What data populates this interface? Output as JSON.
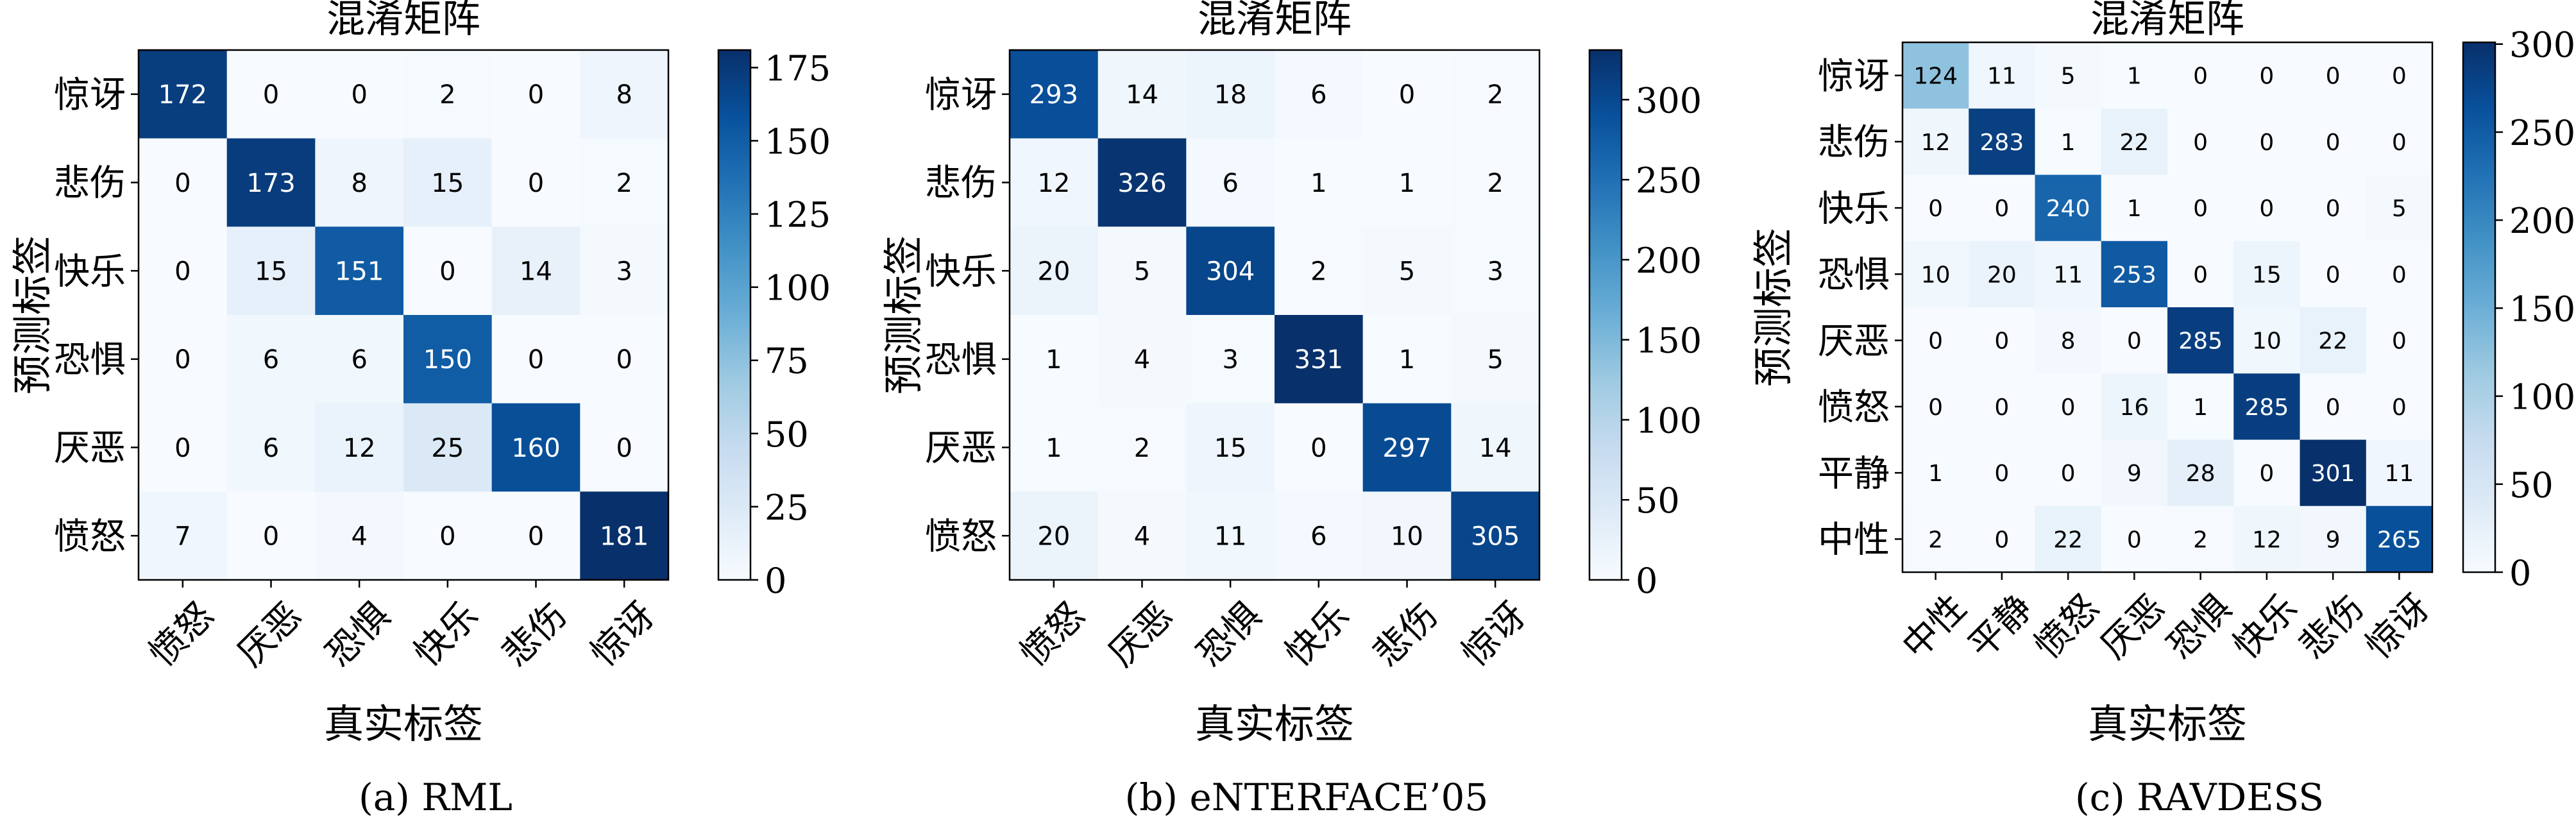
{
  "chart_data": [
    {
      "type": "heatmap",
      "title": "混淆矩阵",
      "xlabel": "真实标签",
      "ylabel": "预测标签",
      "caption": "(a) RML",
      "x_categories": [
        "愤怒",
        "厌恶",
        "恐惧",
        "快乐",
        "悲伤",
        "惊讶"
      ],
      "y_categories": [
        "惊讶",
        "悲伤",
        "快乐",
        "恐惧",
        "厌恶",
        "愤怒"
      ],
      "values": [
        [
          172,
          0,
          0,
          2,
          0,
          8
        ],
        [
          0,
          173,
          8,
          15,
          0,
          2
        ],
        [
          0,
          15,
          151,
          0,
          14,
          3
        ],
        [
          0,
          6,
          6,
          150,
          0,
          0
        ],
        [
          0,
          6,
          12,
          25,
          160,
          0
        ],
        [
          7,
          0,
          4,
          0,
          0,
          181
        ]
      ],
      "colorbar_range": [
        0,
        181
      ],
      "colorbar_ticks": [
        "0",
        "25",
        "50",
        "75",
        "100",
        "125",
        "150",
        "175"
      ],
      "colormap": [
        "#f7fbff",
        "#deebf7",
        "#c6dbef",
        "#9ecae1",
        "#6baed6",
        "#4292c6",
        "#2171b5",
        "#08519c",
        "#08306b"
      ]
    },
    {
      "type": "heatmap",
      "title": "混淆矩阵",
      "xlabel": "真实标签",
      "ylabel": "预测标签",
      "caption": "(b) eNTERFACE’05",
      "x_categories": [
        "愤怒",
        "厌恶",
        "恐惧",
        "快乐",
        "悲伤",
        "惊讶"
      ],
      "y_categories": [
        "惊讶",
        "悲伤",
        "快乐",
        "恐惧",
        "厌恶",
        "愤怒"
      ],
      "values": [
        [
          293,
          14,
          18,
          6,
          0,
          2
        ],
        [
          12,
          326,
          6,
          1,
          1,
          2
        ],
        [
          20,
          5,
          304,
          2,
          5,
          3
        ],
        [
          1,
          4,
          3,
          331,
          1,
          5
        ],
        [
          1,
          2,
          15,
          0,
          297,
          14
        ],
        [
          20,
          4,
          11,
          6,
          10,
          305
        ]
      ],
      "colorbar_range": [
        0,
        331
      ],
      "colorbar_ticks": [
        "0",
        "50",
        "100",
        "150",
        "200",
        "250",
        "300"
      ],
      "colormap": [
        "#f7fbff",
        "#deebf7",
        "#c6dbef",
        "#9ecae1",
        "#6baed6",
        "#4292c6",
        "#2171b5",
        "#08519c",
        "#08306b"
      ]
    },
    {
      "type": "heatmap",
      "title": "混淆矩阵",
      "xlabel": "真实标签",
      "ylabel": "预测标签",
      "caption": "(c) RAVDESS",
      "x_categories": [
        "中性",
        "平静",
        "愤怒",
        "厌恶",
        "恐惧",
        "快乐",
        "悲伤",
        "惊讶"
      ],
      "y_categories": [
        "惊讶",
        "悲伤",
        "快乐",
        "恐惧",
        "厌恶",
        "愤怒",
        "平静",
        "中性"
      ],
      "values": [
        [
          124,
          11,
          5,
          1,
          0,
          0,
          0,
          0
        ],
        [
          12,
          283,
          1,
          22,
          0,
          0,
          0,
          0
        ],
        [
          0,
          0,
          240,
          1,
          0,
          0,
          0,
          5
        ],
        [
          10,
          20,
          11,
          253,
          0,
          15,
          0,
          0
        ],
        [
          0,
          0,
          8,
          0,
          285,
          10,
          22,
          0
        ],
        [
          0,
          0,
          0,
          16,
          1,
          285,
          0,
          0
        ],
        [
          1,
          0,
          0,
          9,
          28,
          0,
          301,
          11
        ],
        [
          2,
          0,
          22,
          0,
          2,
          12,
          9,
          265
        ]
      ],
      "colorbar_range": [
        0,
        301
      ],
      "colorbar_ticks": [
        "0",
        "50",
        "100",
        "150",
        "200",
        "250",
        "300"
      ],
      "colormap": [
        "#f7fbff",
        "#deebf7",
        "#c6dbef",
        "#9ecae1",
        "#6baed6",
        "#4292c6",
        "#2171b5",
        "#08519c",
        "#08306b"
      ]
    }
  ]
}
